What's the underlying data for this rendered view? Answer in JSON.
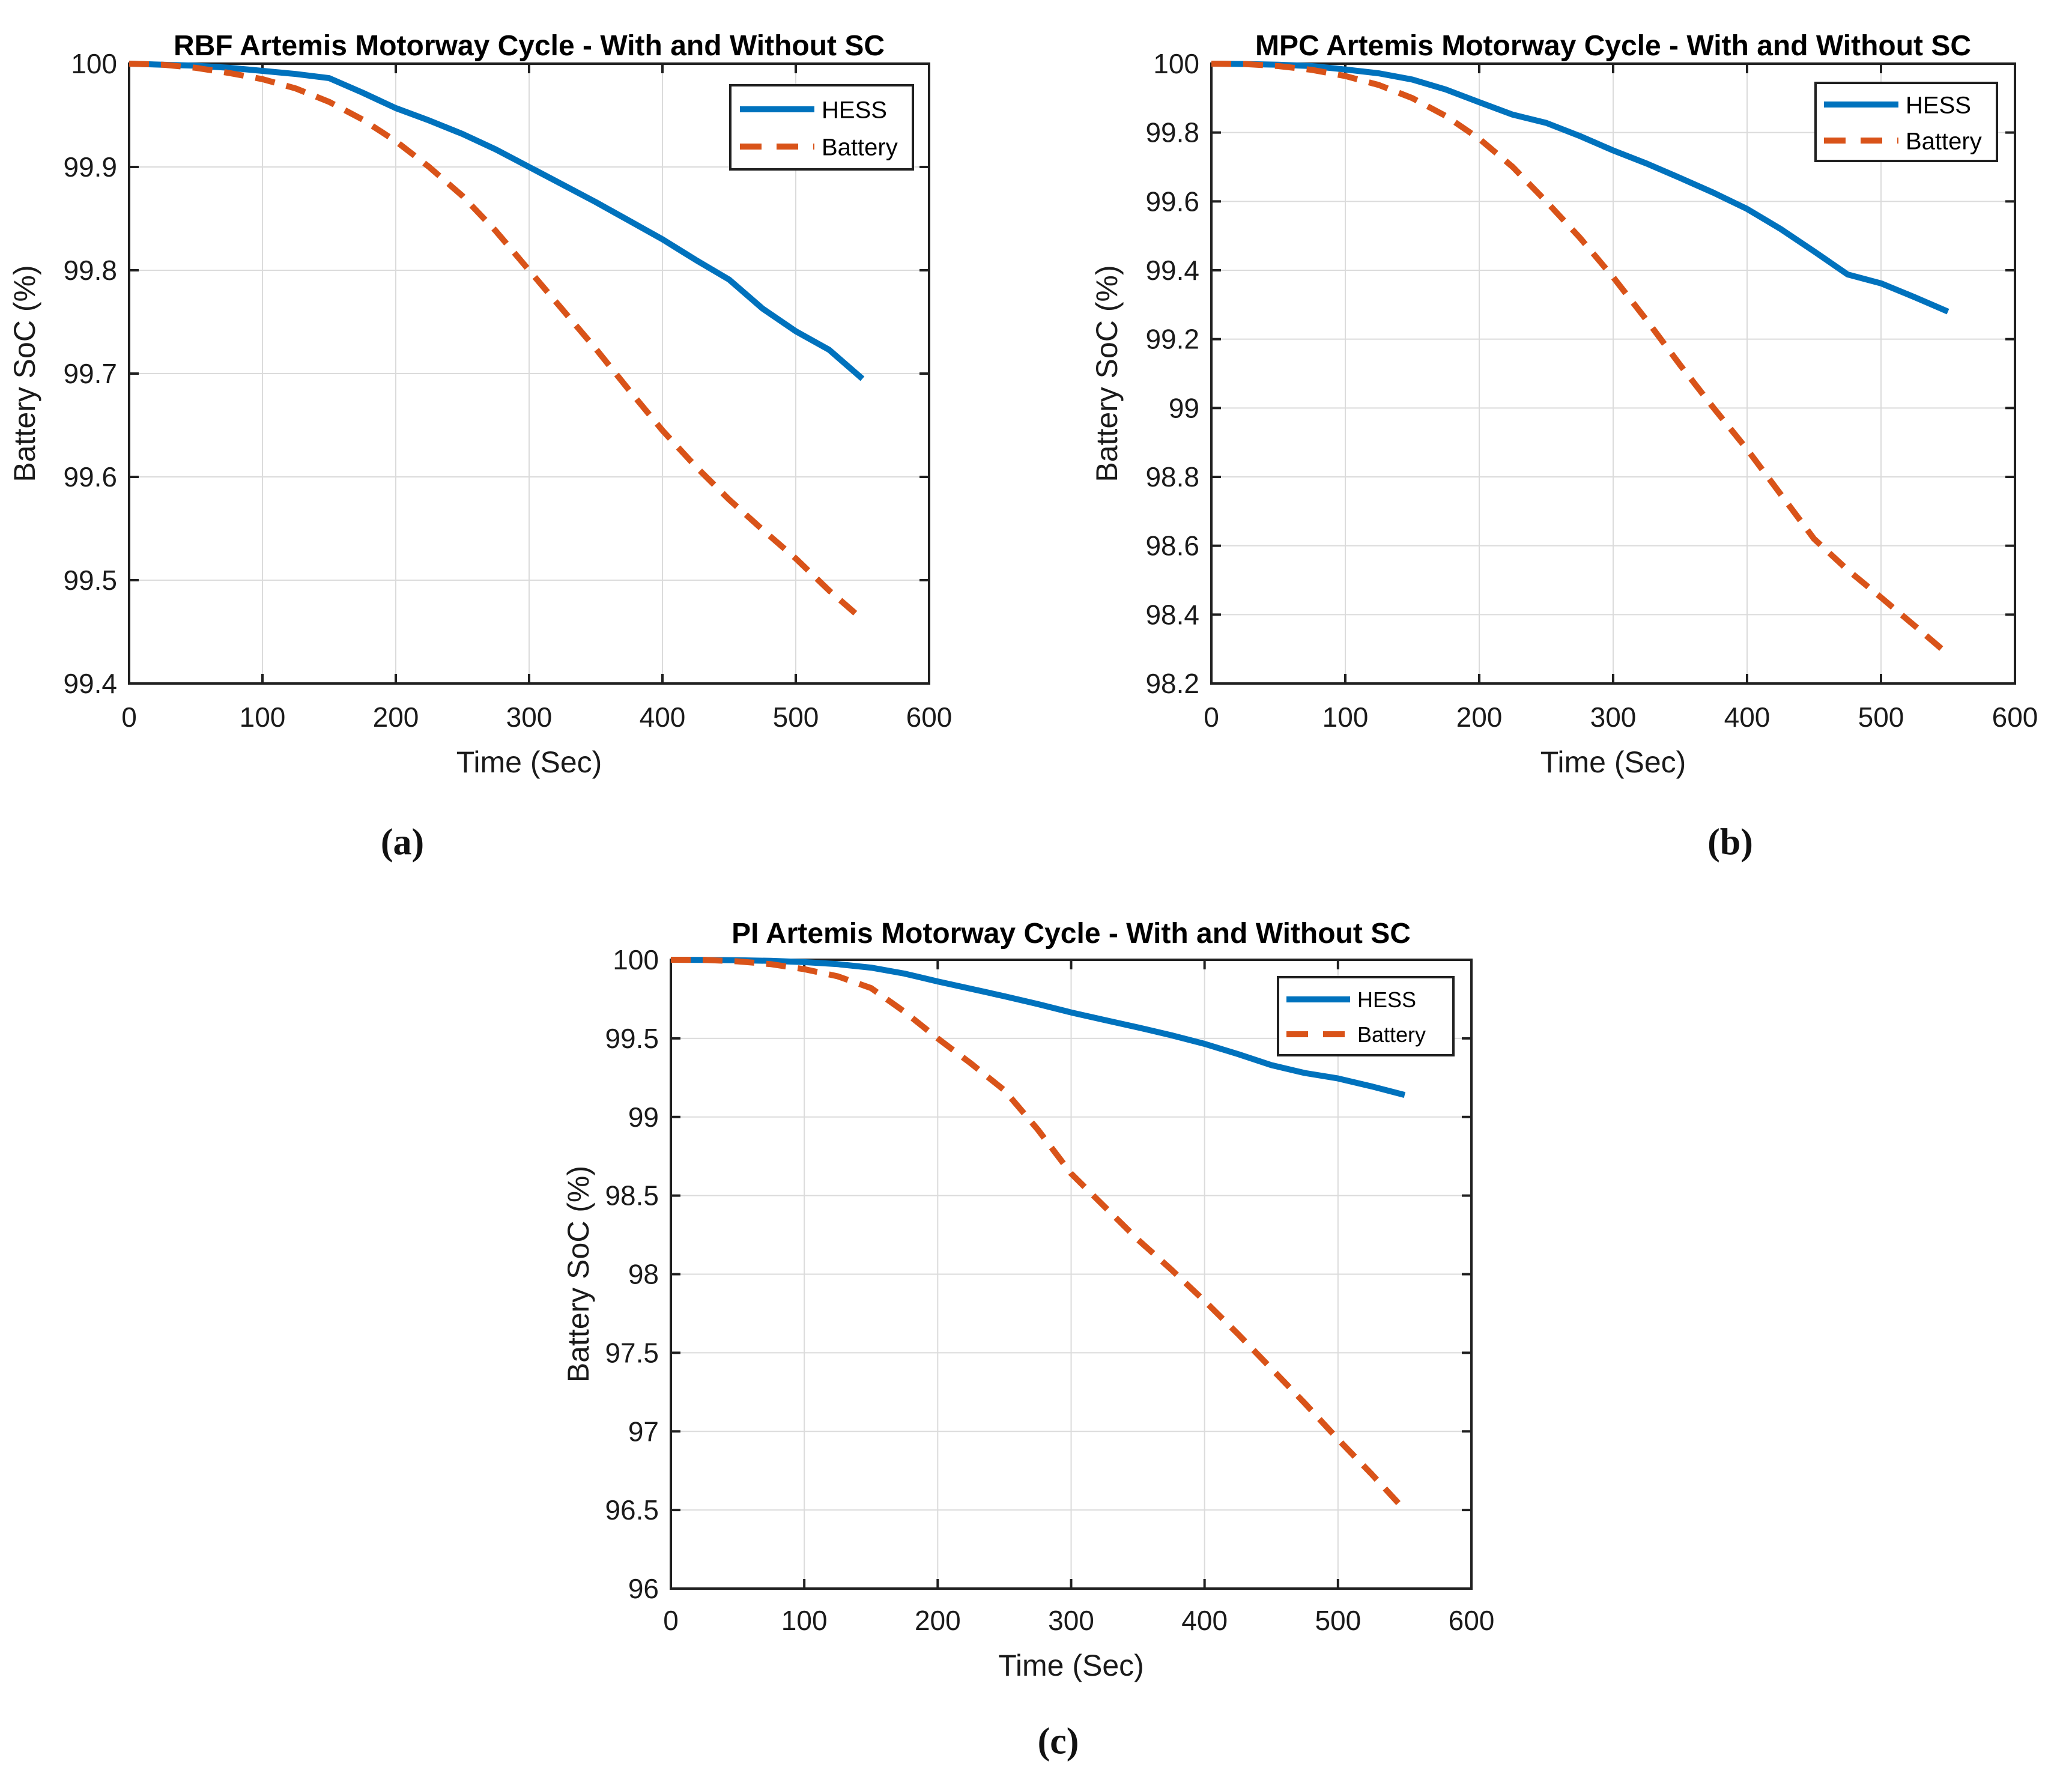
{
  "figure": {
    "background": "#ffffff",
    "captions": [
      {
        "id": "a",
        "label": "(a)"
      },
      {
        "id": "b",
        "label": "(b)"
      },
      {
        "id": "c",
        "label": "(c)"
      }
    ]
  },
  "colors": {
    "hess": "#0072BD",
    "battery": "#D95319",
    "axis": "#202020",
    "grid": "#DBDBDB",
    "text": "#1a1a1a",
    "legend_background": "#ffffff"
  },
  "chart_data": [
    {
      "id": "a",
      "type": "line",
      "title": "RBF Artemis Motorway Cycle - With and Without SC",
      "xlabel": "Time (Sec)",
      "ylabel": "Battery SoC (%)",
      "xlim": [
        0,
        600
      ],
      "ylim": [
        99.4,
        100
      ],
      "grid": true,
      "xticks": [
        0,
        100,
        200,
        300,
        400,
        500,
        600
      ],
      "xtick_labels": [
        "0",
        "100",
        "200",
        "300",
        "400",
        "500",
        "600"
      ],
      "yticks": [
        99.4,
        99.5,
        99.6,
        99.7,
        99.8,
        99.9,
        100
      ],
      "ytick_labels": [
        "99.4",
        "99.5",
        "99.6",
        "99.7",
        "99.8",
        "99.9",
        "100"
      ],
      "legend": {
        "position": "top-right",
        "entries": [
          "HESS",
          "Battery"
        ]
      },
      "x": [
        0,
        25,
        50,
        75,
        100,
        125,
        150,
        175,
        200,
        225,
        250,
        275,
        300,
        325,
        350,
        375,
        400,
        425,
        450,
        475,
        500,
        525,
        550
      ],
      "series": [
        {
          "name": "HESS",
          "color_key": "hess",
          "line_style": "solid",
          "values": [
            100,
            99.999,
            99.998,
            99.996,
            99.993,
            99.99,
            99.986,
            99.972,
            99.957,
            99.945,
            99.932,
            99.917,
            99.9,
            99.883,
            99.866,
            99.848,
            99.83,
            99.81,
            99.791,
            99.763,
            99.741,
            99.723,
            99.695
          ]
        },
        {
          "name": "Battery",
          "color_key": "battery",
          "line_style": "dashed",
          "values": [
            100,
            99.999,
            99.996,
            99.991,
            99.985,
            99.976,
            99.963,
            99.946,
            99.925,
            99.9,
            99.872,
            99.838,
            99.8,
            99.762,
            99.724,
            99.684,
            99.645,
            99.61,
            99.578,
            99.549,
            99.521,
            99.49,
            99.462
          ]
        }
      ]
    },
    {
      "id": "b",
      "type": "line",
      "title": "MPC Artemis Motorway Cycle - With and Without SC",
      "xlabel": "Time (Sec)",
      "ylabel": "Battery SoC (%)",
      "xlim": [
        0,
        600
      ],
      "ylim": [
        98.2,
        100
      ],
      "grid": true,
      "xticks": [
        0,
        100,
        200,
        300,
        400,
        500,
        600
      ],
      "xtick_labels": [
        "0",
        "100",
        "200",
        "300",
        "400",
        "500",
        "600"
      ],
      "yticks": [
        98.2,
        98.4,
        98.6,
        98.8,
        99,
        99.2,
        99.4,
        99.6,
        99.8,
        100
      ],
      "ytick_labels": [
        "98.2",
        "98.4",
        "98.6",
        "98.8",
        "99",
        "99.2",
        "99.4",
        "99.6",
        "99.8",
        "100"
      ],
      "legend": {
        "position": "top-right",
        "entries": [
          "HESS",
          "Battery"
        ]
      },
      "x": [
        0,
        25,
        50,
        75,
        100,
        125,
        150,
        175,
        200,
        225,
        250,
        275,
        300,
        325,
        350,
        375,
        400,
        425,
        450,
        475,
        500,
        525,
        550
      ],
      "series": [
        {
          "name": "HESS",
          "color_key": "hess",
          "line_style": "solid",
          "values": [
            100,
            99.999,
            99.997,
            99.993,
            99.983,
            99.972,
            99.954,
            99.925,
            99.888,
            99.852,
            99.828,
            99.79,
            99.748,
            99.71,
            99.668,
            99.625,
            99.578,
            99.52,
            99.455,
            99.388,
            99.362,
            99.322,
            99.28
          ]
        },
        {
          "name": "Battery",
          "color_key": "battery",
          "line_style": "dashed",
          "values": [
            100,
            99.999,
            99.993,
            99.982,
            99.964,
            99.938,
            99.9,
            99.848,
            99.782,
            99.7,
            99.6,
            99.495,
            99.38,
            99.255,
            99.125,
            99.0,
            98.88,
            98.75,
            98.62,
            98.53,
            98.45,
            98.368,
            98.285
          ]
        }
      ]
    },
    {
      "id": "c",
      "type": "line",
      "title": "PI Artemis Motorway Cycle - With and Without SC",
      "xlabel": "Time (Sec)",
      "ylabel": "Battery SoC (%)",
      "xlim": [
        0,
        600
      ],
      "ylim": [
        96,
        100
      ],
      "grid": true,
      "xticks": [
        0,
        100,
        200,
        300,
        400,
        500,
        600
      ],
      "xtick_labels": [
        "0",
        "100",
        "200",
        "300",
        "400",
        "500",
        "600"
      ],
      "yticks": [
        96,
        96.5,
        97,
        97.5,
        98,
        98.5,
        99,
        99.5,
        100
      ],
      "ytick_labels": [
        "96",
        "96.5",
        "97",
        "97.5",
        "98",
        "98.5",
        "99",
        "99.5",
        "100"
      ],
      "legend": {
        "position": "top-right",
        "entries": [
          "HESS",
          "Battery"
        ]
      },
      "x": [
        0,
        25,
        50,
        75,
        100,
        125,
        150,
        175,
        200,
        225,
        250,
        275,
        300,
        325,
        350,
        375,
        400,
        425,
        450,
        475,
        500,
        525,
        550
      ],
      "series": [
        {
          "name": "HESS",
          "color_key": "hess",
          "line_style": "solid",
          "values": [
            100,
            99.999,
            99.997,
            99.993,
            99.985,
            99.972,
            99.95,
            99.912,
            99.862,
            99.815,
            99.768,
            99.718,
            99.665,
            99.617,
            99.57,
            99.52,
            99.465,
            99.4,
            99.33,
            99.28,
            99.245,
            99.195,
            99.14
          ]
        },
        {
          "name": "Battery",
          "color_key": "battery",
          "line_style": "dashed",
          "values": [
            100,
            99.999,
            99.99,
            99.972,
            99.94,
            99.895,
            99.82,
            99.67,
            99.5,
            99.34,
            99.17,
            98.92,
            98.64,
            98.43,
            98.22,
            98.03,
            97.83,
            97.62,
            97.4,
            97.18,
            96.95,
            96.73,
            96.5
          ]
        }
      ]
    }
  ]
}
